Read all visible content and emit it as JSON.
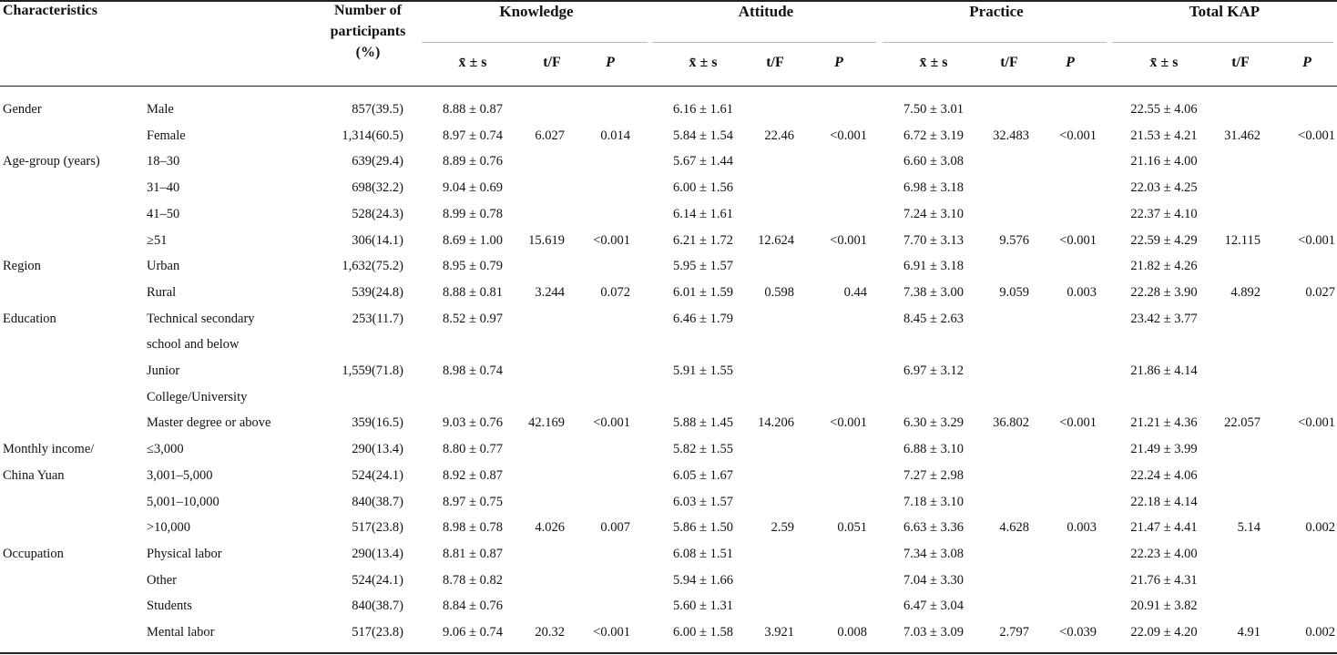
{
  "header": {
    "characteristics": "Characteristics",
    "participants_lines": [
      "Number of",
      "participants",
      "(%)"
    ],
    "groups": [
      "Knowledge",
      "Attitude",
      "Practice",
      "Total KAP"
    ],
    "subheaders": [
      [
        "x̄ ± s",
        "t/F",
        "P"
      ],
      [
        "x̄ ± s",
        "t/F",
        "P"
      ],
      [
        "x̄ ± s",
        "t/F",
        "P"
      ],
      [
        "x̄ ± s",
        "t/F",
        "P"
      ]
    ]
  },
  "rows": [
    {
      "c1": "Gender",
      "c2": "Male",
      "n": "857(39.5)",
      "k": "8.88 ± 0.87",
      "kt": "",
      "kp": "",
      "a": "6.16 ± 1.61",
      "at": "",
      "ap": "",
      "p": "7.50 ± 3.01",
      "pt": "",
      "pp": "",
      "tk": "22.55 ± 4.06",
      "tt": "",
      "tp": ""
    },
    {
      "c1": "",
      "c2": "Female",
      "n": "1,314(60.5)",
      "k": "8.97 ± 0.74",
      "kt": "6.027",
      "kp": "0.014",
      "a": "5.84 ± 1.54",
      "at": "22.46",
      "ap": "<0.001",
      "p": "6.72 ± 3.19",
      "pt": "32.483",
      "pp": "<0.001",
      "tk": "21.53 ± 4.21",
      "tt": "31.462",
      "tp": "<0.001"
    },
    {
      "c1": "Age-group (years)",
      "c2": "18–30",
      "n": "639(29.4)",
      "k": "8.89 ± 0.76",
      "kt": "",
      "kp": "",
      "a": "5.67 ± 1.44",
      "at": "",
      "ap": "",
      "p": "6.60 ± 3.08",
      "pt": "",
      "pp": "",
      "tk": "21.16 ± 4.00",
      "tt": "",
      "tp": ""
    },
    {
      "c1": "",
      "c2": "31–40",
      "n": "698(32.2)",
      "k": "9.04 ± 0.69",
      "kt": "",
      "kp": "",
      "a": "6.00 ± 1.56",
      "at": "",
      "ap": "",
      "p": "6.98 ± 3.18",
      "pt": "",
      "pp": "",
      "tk": "22.03 ± 4.25",
      "tt": "",
      "tp": ""
    },
    {
      "c1": "",
      "c2": "41–50",
      "n": "528(24.3)",
      "k": "8.99 ± 0.78",
      "kt": "",
      "kp": "",
      "a": "6.14 ± 1.61",
      "at": "",
      "ap": "",
      "p": "7.24 ± 3.10",
      "pt": "",
      "pp": "",
      "tk": "22.37 ± 4.10",
      "tt": "",
      "tp": ""
    },
    {
      "c1": "",
      "c2": "≥51",
      "n": "306(14.1)",
      "k": "8.69 ± 1.00",
      "kt": "15.619",
      "kp": "<0.001",
      "a": "6.21 ± 1.72",
      "at": "12.624",
      "ap": "<0.001",
      "p": "7.70 ± 3.13",
      "pt": "9.576",
      "pp": "<0.001",
      "tk": "22.59 ± 4.29",
      "tt": "12.115",
      "tp": "<0.001"
    },
    {
      "c1": "Region",
      "c2": "Urban",
      "n": "1,632(75.2)",
      "k": "8.95 ± 0.79",
      "kt": "",
      "kp": "",
      "a": "5.95 ± 1.57",
      "at": "",
      "ap": "",
      "p": "6.91 ± 3.18",
      "pt": "",
      "pp": "",
      "tk": "21.82 ± 4.26",
      "tt": "",
      "tp": ""
    },
    {
      "c1": "",
      "c2": "Rural",
      "n": "539(24.8)",
      "k": "8.88 ± 0.81",
      "kt": "3.244",
      "kp": "0.072",
      "a": "6.01 ± 1.59",
      "at": "0.598",
      "ap": "0.44",
      "p": "7.38 ± 3.00",
      "pt": "9.059",
      "pp": "0.003",
      "tk": "22.28 ± 3.90",
      "tt": "4.892",
      "tp": "0.027"
    },
    {
      "c1": "Education",
      "c2": "Technical secondary",
      "n": "253(11.7)",
      "k": "8.52 ± 0.97",
      "kt": "",
      "kp": "",
      "a": "6.46 ± 1.79",
      "at": "",
      "ap": "",
      "p": "8.45 ± 2.63",
      "pt": "",
      "pp": "",
      "tk": "23.42 ± 3.77",
      "tt": "",
      "tp": ""
    },
    {
      "c1": "",
      "c2": "school and below",
      "n": "",
      "k": "",
      "kt": "",
      "kp": "",
      "a": "",
      "at": "",
      "ap": "",
      "p": "",
      "pt": "",
      "pp": "",
      "tk": "",
      "tt": "",
      "tp": ""
    },
    {
      "c1": "",
      "c2": "Junior",
      "n": "1,559(71.8)",
      "k": "8.98 ± 0.74",
      "kt": "",
      "kp": "",
      "a": "5.91 ± 1.55",
      "at": "",
      "ap": "",
      "p": "6.97 ± 3.12",
      "pt": "",
      "pp": "",
      "tk": "21.86 ± 4.14",
      "tt": "",
      "tp": ""
    },
    {
      "c1": "",
      "c2": "College/University",
      "n": "",
      "k": "",
      "kt": "",
      "kp": "",
      "a": "",
      "at": "",
      "ap": "",
      "p": "",
      "pt": "",
      "pp": "",
      "tk": "",
      "tt": "",
      "tp": ""
    },
    {
      "c1": "",
      "c2": "Master degree or above",
      "n": "359(16.5)",
      "k": "9.03 ± 0.76",
      "kt": "42.169",
      "kp": "<0.001",
      "a": "5.88 ± 1.45",
      "at": "14.206",
      "ap": "<0.001",
      "p": "6.30 ± 3.29",
      "pt": "36.802",
      "pp": "<0.001",
      "tk": "21.21 ± 4.36",
      "tt": "22.057",
      "tp": "<0.001"
    },
    {
      "c1": "Monthly income/",
      "c2": "≤3,000",
      "n": "290(13.4)",
      "k": "8.80 ± 0.77",
      "kt": "",
      "kp": "",
      "a": "5.82 ± 1.55",
      "at": "",
      "ap": "",
      "p": "6.88 ± 3.10",
      "pt": "",
      "pp": "",
      "tk": "21.49 ± 3.99",
      "tt": "",
      "tp": ""
    },
    {
      "c1": "China Yuan",
      "c2": "3,001–5,000",
      "n": "524(24.1)",
      "k": "8.92 ± 0.87",
      "kt": "",
      "kp": "",
      "a": "6.05 ± 1.67",
      "at": "",
      "ap": "",
      "p": "7.27 ± 2.98",
      "pt": "",
      "pp": "",
      "tk": "22.24 ± 4.06",
      "tt": "",
      "tp": ""
    },
    {
      "c1": "",
      "c2": "5,001–10,000",
      "n": "840(38.7)",
      "k": "8.97 ± 0.75",
      "kt": "",
      "kp": "",
      "a": "6.03 ± 1.57",
      "at": "",
      "ap": "",
      "p": "7.18 ± 3.10",
      "pt": "",
      "pp": "",
      "tk": "22.18 ± 4.14",
      "tt": "",
      "tp": ""
    },
    {
      "c1": "",
      "c2": ">10,000",
      "n": "517(23.8)",
      "k": "8.98 ± 0.78",
      "kt": "4.026",
      "kp": "0.007",
      "a": "5.86 ± 1.50",
      "at": "2.59",
      "ap": "0.051",
      "p": "6.63 ± 3.36",
      "pt": "4.628",
      "pp": "0.003",
      "tk": "21.47 ± 4.41",
      "tt": "5.14",
      "tp": "0.002"
    },
    {
      "c1": "Occupation",
      "c2": "Physical labor",
      "n": "290(13.4)",
      "k": "8.81 ± 0.87",
      "kt": "",
      "kp": "",
      "a": "6.08 ± 1.51",
      "at": "",
      "ap": "",
      "p": "7.34 ± 3.08",
      "pt": "",
      "pp": "",
      "tk": "22.23 ± 4.00",
      "tt": "",
      "tp": ""
    },
    {
      "c1": "",
      "c2": "Other",
      "n": "524(24.1)",
      "k": "8.78 ± 0.82",
      "kt": "",
      "kp": "",
      "a": "5.94 ± 1.66",
      "at": "",
      "ap": "",
      "p": "7.04 ± 3.30",
      "pt": "",
      "pp": "",
      "tk": "21.76 ± 4.31",
      "tt": "",
      "tp": ""
    },
    {
      "c1": "",
      "c2": "Students",
      "n": "840(38.7)",
      "k": "8.84 ± 0.76",
      "kt": "",
      "kp": "",
      "a": "5.60 ± 1.31",
      "at": "",
      "ap": "",
      "p": "6.47 ± 3.04",
      "pt": "",
      "pp": "",
      "tk": "20.91 ± 3.82",
      "tt": "",
      "tp": ""
    },
    {
      "c1": "",
      "c2": "Mental labor",
      "n": "517(23.8)",
      "k": "9.06 ± 0.74",
      "kt": "20.32",
      "kp": "<0.001",
      "a": "6.00 ± 1.58",
      "at": "3.921",
      "ap": "0.008",
      "p": "7.03 ± 3.09",
      "pt": "2.797",
      "pp": "<0.039",
      "tk": "22.09 ± 4.20",
      "tt": "4.91",
      "tp": "0.002"
    }
  ]
}
